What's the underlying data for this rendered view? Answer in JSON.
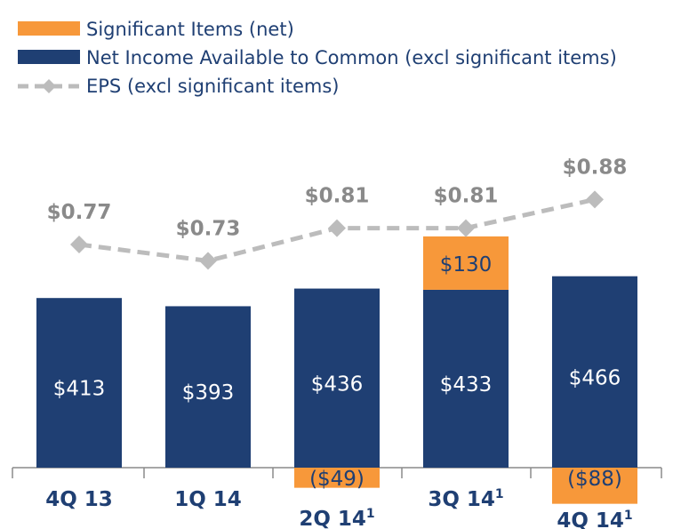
{
  "chart_data": {
    "type": "bar",
    "legend": {
      "placement": "top-left",
      "entries": [
        {
          "key": "significant",
          "label": "Significant Items (net)"
        },
        {
          "key": "net_income",
          "label": "Net Income Available to Common (excl significant items)"
        },
        {
          "key": "eps",
          "label": "EPS (excl significant items)"
        }
      ]
    },
    "categories": [
      "4Q 13",
      "1Q 14",
      "2Q 14",
      "3Q 14",
      "4Q 14"
    ],
    "category_footnotes": [
      "",
      "",
      "1",
      "1",
      "1"
    ],
    "series": [
      {
        "name": "Net Income Available to Common (excl significant items)",
        "key": "net_income",
        "values": [
          413,
          393,
          436,
          433,
          466
        ],
        "labels": [
          "$413",
          "$393",
          "$436",
          "$433",
          "$466"
        ]
      },
      {
        "name": "Significant Items (net)",
        "key": "significant",
        "values": [
          null,
          null,
          -49,
          130,
          -88
        ],
        "labels": [
          "",
          "",
          "($49)",
          "$130",
          "($88)"
        ]
      },
      {
        "name": "EPS (excl significant items)",
        "key": "eps",
        "type": "line",
        "values": [
          0.77,
          0.73,
          0.81,
          0.81,
          0.88
        ],
        "labels": [
          "$0.77",
          "$0.73",
          "$0.81",
          "$0.81",
          "$0.88"
        ]
      }
    ],
    "colors": {
      "net_income": "#1f3f73",
      "significant": "#f7983a",
      "eps": "#bcbcbc",
      "eps_label": "#8a8a8a",
      "category": "#1f3f73",
      "axis": "#8a8a8a"
    },
    "ylim": [
      -100,
      600
    ],
    "eps_ylim": [
      0.55,
      0.95
    ],
    "grid": false
  }
}
